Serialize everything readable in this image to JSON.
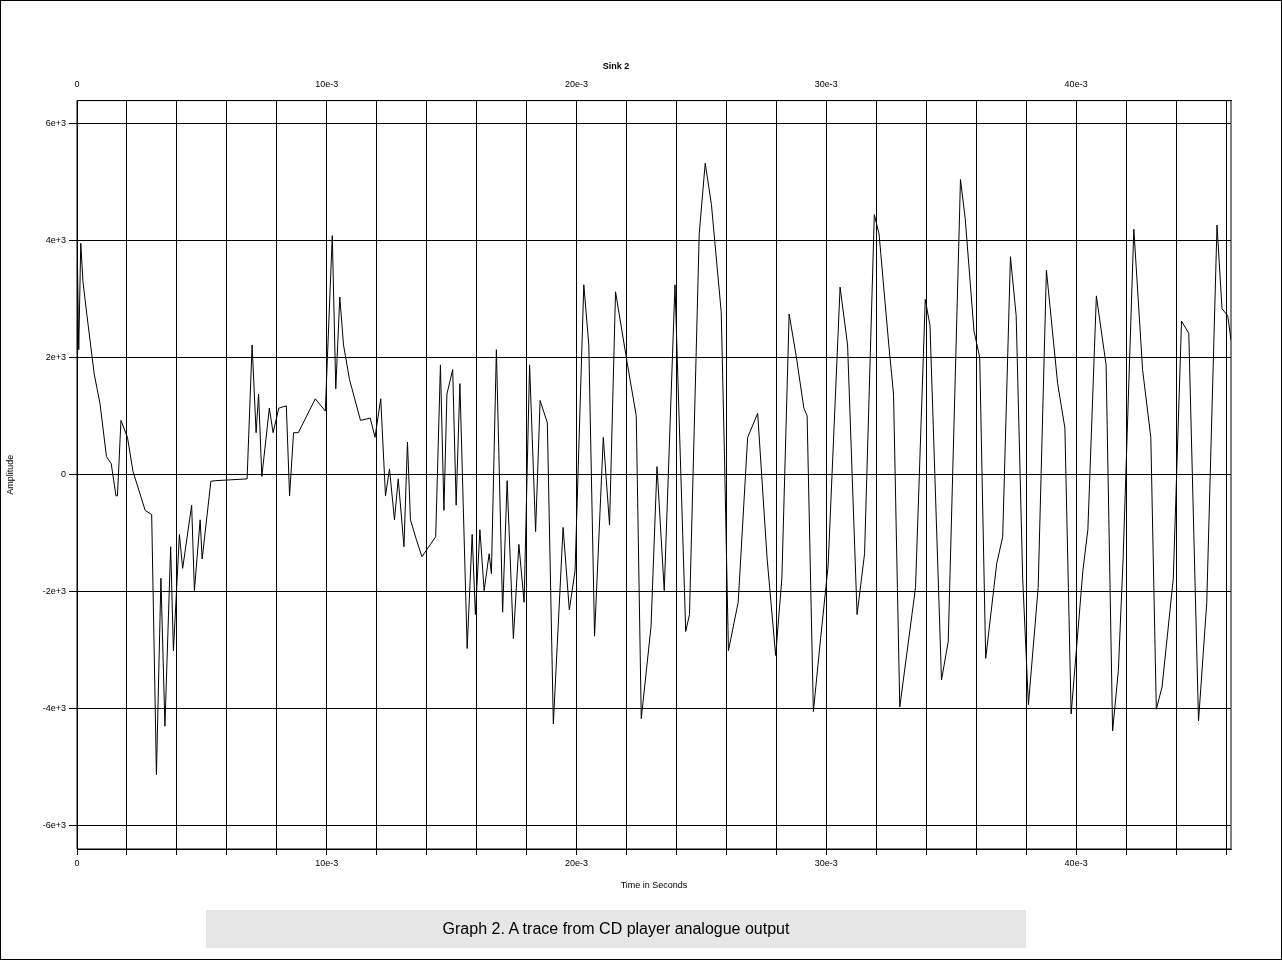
{
  "chart_data": {
    "type": "line",
    "title": "Sink 2",
    "xlabel": "Time in Seconds",
    "ylabel": "Amplitude",
    "annotations": [
      "Graph 2. A trace from CD player analogue output"
    ],
    "xlim": [
      0,
      0.0462
    ],
    "x2lim": [
      0,
      0.0462
    ],
    "ylim": [
      -6400,
      6400
    ],
    "xticks": [
      0,
      {
        "value": 0.002,
        "label": null
      },
      {
        "value": 0.004,
        "label": null
      },
      {
        "value": 0.006,
        "label": null
      },
      {
        "value": 0.008,
        "label": null
      },
      {
        "value": 0.01,
        "label": "10e-3"
      },
      {
        "value": 0.012,
        "label": null
      },
      {
        "value": 0.014,
        "label": null
      },
      {
        "value": 0.016,
        "label": null
      },
      {
        "value": 0.018,
        "label": null
      },
      {
        "value": 0.02,
        "label": "20e-3"
      },
      {
        "value": 0.022,
        "label": null
      },
      {
        "value": 0.024,
        "label": null
      },
      {
        "value": 0.026,
        "label": null
      },
      {
        "value": 0.028,
        "label": null
      },
      {
        "value": 0.03,
        "label": "30e-3"
      },
      {
        "value": 0.032,
        "label": null
      },
      {
        "value": 0.034,
        "label": null
      },
      {
        "value": 0.036,
        "label": null
      },
      {
        "value": 0.038,
        "label": null
      },
      {
        "value": 0.04,
        "label": "40e-3"
      },
      {
        "value": 0.042,
        "label": null
      },
      {
        "value": 0.044,
        "label": null
      },
      {
        "value": 0.046,
        "label": null
      }
    ],
    "x2ticks": [
      0,
      {
        "value": 0.002,
        "label": null
      },
      {
        "value": 0.004,
        "label": null
      },
      {
        "value": 0.006,
        "label": null
      },
      {
        "value": 0.008,
        "label": null
      },
      {
        "value": 0.01,
        "label": "10e-3"
      },
      {
        "value": 0.012,
        "label": null
      },
      {
        "value": 0.014,
        "label": null
      },
      {
        "value": 0.016,
        "label": null
      },
      {
        "value": 0.018,
        "label": null
      },
      {
        "value": 0.02,
        "label": "20e-3"
      },
      {
        "value": 0.022,
        "label": null
      },
      {
        "value": 0.024,
        "label": null
      },
      {
        "value": 0.026,
        "label": null
      },
      {
        "value": 0.028,
        "label": null
      },
      {
        "value": 0.03,
        "label": "30e-3"
      },
      {
        "value": 0.032,
        "label": null
      },
      {
        "value": 0.034,
        "label": null
      },
      {
        "value": 0.036,
        "label": null
      },
      {
        "value": 0.038,
        "label": null
      },
      {
        "value": 0.04,
        "label": "40e-3"
      },
      {
        "value": 0.042,
        "label": null
      },
      {
        "value": 0.044,
        "label": null
      },
      {
        "value": 0.046,
        "label": null
      }
    ],
    "yticks": [
      {
        "value": -6000,
        "label": "-6e+3"
      },
      {
        "value": -4000,
        "label": "-4e+3"
      },
      {
        "value": -2000,
        "label": "-2e+3"
      },
      0,
      {
        "value": 2000,
        "label": "2e+3"
      },
      {
        "value": 4000,
        "label": "4e+3"
      },
      {
        "value": 6000,
        "label": "6e+3"
      }
    ],
    "grid": true,
    "legend": false,
    "marker": "none",
    "line_style": "solid",
    "series": [
      {
        "color": "#000000",
        "x": [
          0,
          7e-05,
          0.00015,
          0.00024,
          0.0004,
          0.00069,
          0.00092,
          0.00118,
          0.00137,
          0.00156,
          0.00162,
          0.00176,
          0.00202,
          0.00224,
          0.00273,
          0.00299,
          0.00318,
          0.00336,
          0.00352,
          0.00375,
          0.00386,
          0.0041,
          0.00423,
          0.00459,
          0.0047,
          0.00493,
          0.00501,
          0.00536,
          0.00556,
          0.00681,
          0.00701,
          0.00717,
          0.00727,
          0.0074,
          0.0077,
          0.00785,
          0.00808,
          0.00838,
          0.00851,
          0.00867,
          0.00886,
          0.00954,
          0.00994,
          0.01022,
          0.01036,
          0.01052,
          0.01067,
          0.01091,
          0.01135,
          0.01174,
          0.01193,
          0.01216,
          0.01235,
          0.01251,
          0.01271,
          0.01286,
          0.01309,
          0.01323,
          0.01335,
          0.01358,
          0.01381,
          0.01436,
          0.01455,
          0.01469,
          0.01481,
          0.01504,
          0.01518,
          0.01533,
          0.01562,
          0.01582,
          0.01595,
          0.01613,
          0.0163,
          0.0165,
          0.01659,
          0.01679,
          0.01704,
          0.01722,
          0.01747,
          0.01769,
          0.0179,
          0.01812,
          0.01836,
          0.01854,
          0.01883,
          0.01907,
          0.01946,
          0.01971,
          0.01994,
          0.02029,
          0.02049,
          0.02072,
          0.02107,
          0.02132,
          0.02156,
          0.02204,
          0.02239,
          0.02259,
          0.02298,
          0.02322,
          0.02351,
          0.02394,
          0.02437,
          0.02452,
          0.02491,
          0.02515,
          0.0254,
          0.02579,
          0.02592,
          0.02608,
          0.02647,
          0.02685,
          0.02725,
          0.02763,
          0.02797,
          0.02822,
          0.02851,
          0.0288,
          0.0291,
          0.02923,
          0.02948,
          0.02977,
          0.03007,
          0.03055,
          0.03085,
          0.03123,
          0.03153,
          0.03192,
          0.03211,
          0.0325,
          0.03269,
          0.03294,
          0.03357,
          0.03396,
          0.03415,
          0.03461,
          0.03488,
          0.03537,
          0.03556,
          0.03591,
          0.03614,
          0.03638,
          0.03682,
          0.03706,
          0.03737,
          0.0376,
          0.03786,
          0.03809,
          0.03848,
          0.03881,
          0.03926,
          0.03955,
          0.0398,
          0.04027,
          0.04047,
          0.04081,
          0.0412,
          0.04146,
          0.04169,
          0.04188,
          0.04231,
          0.04266,
          0.04299,
          0.04321,
          0.04344,
          0.04389,
          0.04422,
          0.04451,
          0.0449,
          0.04523,
          0.04564,
          0.04584,
          0.04607,
          0.0462
        ],
        "values": [
          4120,
          2140,
          3960,
          3300,
          2720,
          1720,
          1220,
          310,
          190,
          -360,
          -360,
          930,
          640,
          60,
          -610,
          -680,
          -5130,
          -1770,
          -4300,
          -1230,
          -3010,
          -1020,
          -1600,
          -520,
          -1980,
          -770,
          -1440,
          -110,
          -100,
          -70,
          2220,
          720,
          1380,
          -30,
          1140,
          720,
          1140,
          1180,
          -360,
          720,
          720,
          1300,
          1090,
          4090,
          1470,
          3040,
          2220,
          1630,
          930,
          970,
          640,
          1300,
          -360,
          100,
          -770,
          -70,
          -1230,
          560,
          -770,
          -1100,
          -1400,
          -1060,
          1880,
          -610,
          1380,
          1800,
          -520,
          1560,
          -2970,
          -1020,
          -2390,
          -940,
          -1980,
          -1350,
          -1690,
          2140,
          -2350,
          -100,
          -2800,
          -1190,
          -2180,
          1880,
          -970,
          1270,
          890,
          -4260,
          -900,
          -2310,
          -1640,
          3250,
          2220,
          -2760,
          640,
          -860,
          3130,
          1880,
          1010,
          -4170,
          -2600,
          140,
          -1980,
          3250,
          -2680,
          -2390,
          4120,
          5330,
          4620,
          2790,
          350,
          -3010,
          -2180,
          640,
          1050,
          -1440,
          -3090,
          -1770,
          2750,
          2010,
          1140,
          1010,
          -4050,
          -2800,
          -1560,
          3210,
          2220,
          -2390,
          -1350,
          4450,
          4120,
          2220,
          1380,
          -3970,
          -1930,
          3000,
          2550,
          -3510,
          -2850,
          5050,
          4380,
          2460,
          2010,
          -3140,
          -1520,
          -1060,
          3730,
          2720,
          -1770,
          -3930,
          -1930,
          3500,
          1560,
          800,
          -4090,
          -1640,
          -940,
          3060,
          1880,
          -4380,
          -3350,
          -1440,
          4200,
          1800,
          640,
          -4010,
          -3630,
          -1770,
          2630,
          2420,
          -4210,
          -2180,
          4270,
          2840,
          2720,
          2300
        ]
      }
    ]
  }
}
